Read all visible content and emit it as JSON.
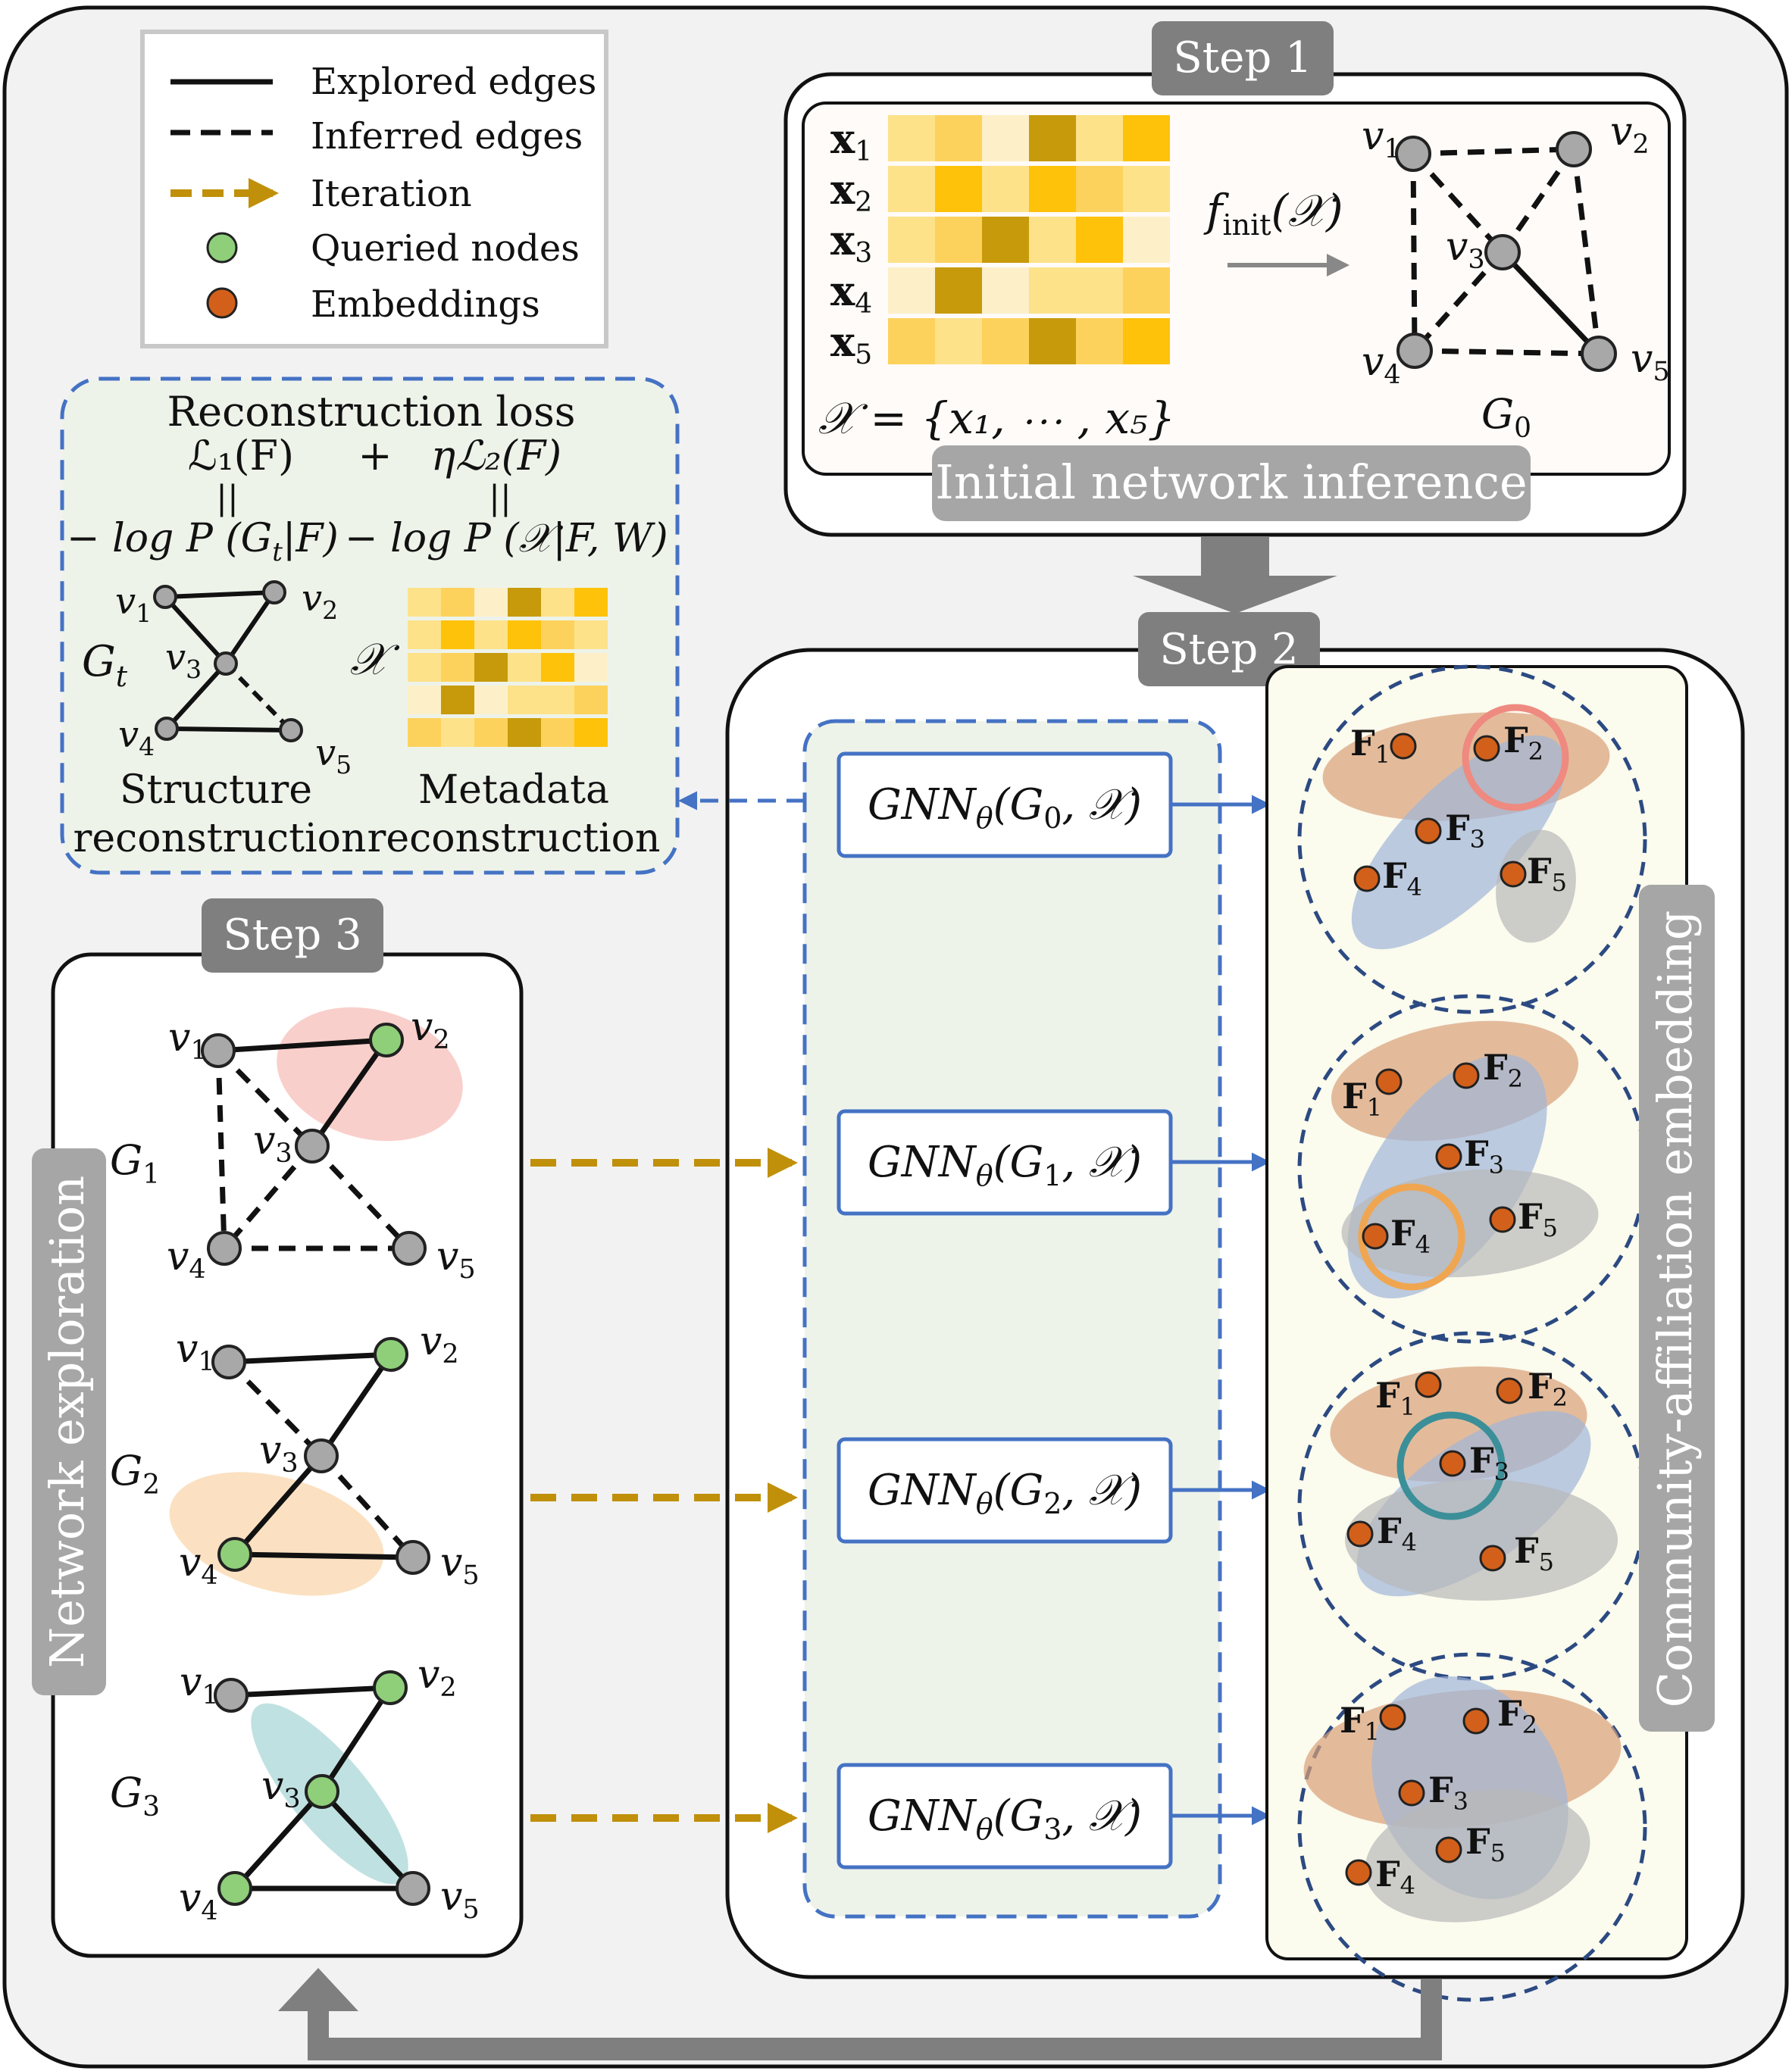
{
  "legend": {
    "items": [
      {
        "label": "Explored edges",
        "style": "solid",
        "color": "#111111"
      },
      {
        "label": "Inferred edges",
        "style": "dashed",
        "color": "#111111"
      },
      {
        "label": "Iteration",
        "style": "arrow",
        "color": "#c0900a"
      },
      {
        "label": "Queried nodes",
        "style": "node",
        "color": "#8fcf7a"
      },
      {
        "label": "Embeddings",
        "style": "node",
        "color": "#d2601a"
      }
    ]
  },
  "step1": {
    "tag": "Step 1",
    "caption": "Initial network inference",
    "row_labels": [
      "x",
      "x",
      "x",
      "x",
      "x"
    ],
    "row_subs": [
      "1",
      "2",
      "3",
      "4",
      "5"
    ],
    "heat": [
      [
        1,
        2,
        0,
        4,
        1,
        3
      ],
      [
        1,
        3,
        1,
        3,
        2,
        1
      ],
      [
        1,
        2,
        4,
        1,
        3,
        0
      ],
      [
        0,
        4,
        0,
        1,
        1,
        2
      ],
      [
        2,
        1,
        2,
        4,
        2,
        3
      ]
    ],
    "set_formula": "𝒳 = {x₁, ⋯ , x₅}",
    "finit": "f",
    "finit_sub": "init",
    "finit_arg": "(𝒳)",
    "graph_label": "G",
    "graph_sub": "0",
    "nodes": [
      {
        "label": "v",
        "sub": "1"
      },
      {
        "label": "v",
        "sub": "2"
      },
      {
        "label": "v",
        "sub": "3"
      },
      {
        "label": "v",
        "sub": "4"
      },
      {
        "label": "v",
        "sub": "5"
      }
    ]
  },
  "loss": {
    "title": "Reconstruction loss",
    "term1": "ℒ₁(F)",
    "plus": "+",
    "term2": "ηℒ₂(F)",
    "eq_sign": "||",
    "neg1": "− log P (G",
    "neg1_sub": "t",
    "neg1_end": "|F)",
    "neg2": "− log P (𝒳|F, W)",
    "gt_label": "G",
    "gt_sub": "t",
    "x_label": "𝒳",
    "structure_line1": "Structure",
    "structure_line2": "reconstruction",
    "metadata_line1": "Metadata",
    "metadata_line2": "reconstruction",
    "heat": [
      [
        1,
        2,
        0,
        4,
        1,
        3
      ],
      [
        1,
        3,
        1,
        3,
        2,
        1
      ],
      [
        1,
        2,
        4,
        1,
        3,
        0
      ],
      [
        0,
        4,
        0,
        1,
        1,
        2
      ],
      [
        2,
        1,
        2,
        4,
        2,
        3
      ]
    ]
  },
  "step2": {
    "tag": "Step 2",
    "gnn_boxes": [
      {
        "pre": "GNN",
        "sub": "θ",
        "arg": "(G",
        "arg_sub": "0",
        "end": ", 𝒳)"
      },
      {
        "pre": "GNN",
        "sub": "θ",
        "arg": "(G",
        "arg_sub": "1",
        "end": ", 𝒳)"
      },
      {
        "pre": "GNN",
        "sub": "θ",
        "arg": "(G",
        "arg_sub": "2",
        "end": ", 𝒳)"
      },
      {
        "pre": "GNN",
        "sub": "θ",
        "arg": "(G",
        "arg_sub": "3",
        "end": ", 𝒳)"
      }
    ],
    "side_label": "Community-affiliation embedding",
    "factor_label": "F",
    "factor_subs": [
      "1",
      "2",
      "3",
      "4",
      "5"
    ]
  },
  "step3": {
    "tag": "Step 3",
    "side_label": "Network exploration",
    "graph_label": "G",
    "graph_subs": [
      "1",
      "2",
      "3"
    ],
    "node_label": "v",
    "node_subs": [
      "1",
      "2",
      "3",
      "4",
      "5"
    ]
  },
  "colors": {
    "heat": [
      "#fdf0c8",
      "#fde28a",
      "#fdd25c",
      "#fec20a",
      "#c79a0c"
    ],
    "gold": "#c0900a",
    "blue": "#4472c4",
    "gray_tag": "#7f7f7f",
    "node_gray": "#a8a8a8",
    "node_green": "#8fcf7a",
    "node_orange": "#d2601a",
    "ell_orange": "#d9a077",
    "ell_blue": "#9fb5d8",
    "ell_gray": "#b8b8b8"
  }
}
